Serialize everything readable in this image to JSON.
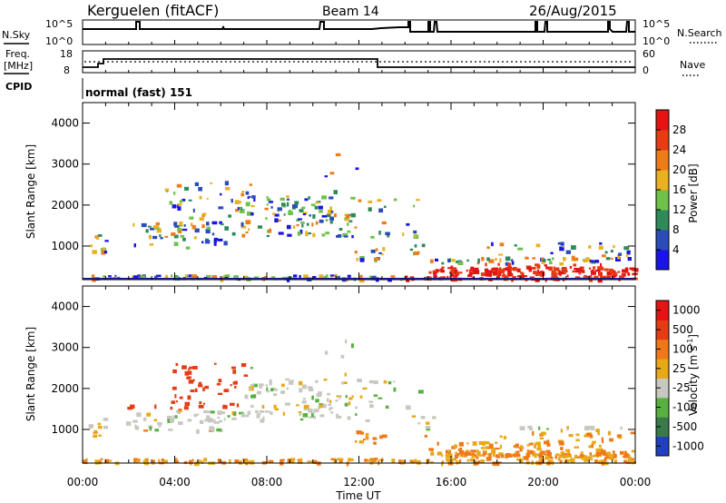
{
  "header": {
    "radar": "Kerguelen (fitACF)",
    "beam": "Beam 14",
    "date": "26/Aug/2015"
  },
  "status_panel": {
    "nsky_label": "N.Sky",
    "nsearch_label": "N.Search",
    "noise_ticks": [
      "10^5",
      "10^0"
    ],
    "freq_label": "Freq.",
    "freq_unit": "[MHz]",
    "freq_ticks": [
      "18",
      "8"
    ],
    "nave_label": "Nave",
    "nave_ticks": [
      "60",
      "0"
    ],
    "cpid_label": "CPID",
    "cpid_value": "normal (fast) 151"
  },
  "colors": {
    "power": [
      "#1a14e6",
      "#2a4cb8",
      "#2f8a5a",
      "#6ec24a",
      "#e9b020",
      "#f07c18",
      "#e63c14",
      "#e41414"
    ],
    "velocity": [
      "#2040c0",
      "#3a7a4a",
      "#58b040",
      "#c8c8c0",
      "#e8a818",
      "#f07818",
      "#e43c14",
      "#e41414"
    ]
  },
  "chart_data": [
    {
      "type": "heatmap",
      "title": "Power",
      "xlabel": "Time UT",
      "ylabel": "Slant Range [km]",
      "x_ticks": [
        "00:00",
        "04:00",
        "08:00",
        "12:00",
        "16:00",
        "20:00",
        "00:00"
      ],
      "xlim_hours": [
        0,
        24
      ],
      "ylim_km": [
        180,
        4500
      ],
      "y_ticks": [
        "1000",
        "2000",
        "3000",
        "4000"
      ],
      "colorbar_label": "Power [dB]",
      "colorbar_ticks": [
        "28",
        "24",
        "20",
        "16",
        "12",
        "8",
        "4"
      ],
      "colorbar_range_db": [
        0,
        32
      ]
    },
    {
      "type": "heatmap",
      "title": "Velocity",
      "xlabel": "Time UT",
      "ylabel": "Slant Range [km]",
      "x_ticks": [
        "00:00",
        "04:00",
        "08:00",
        "12:00",
        "16:00",
        "20:00",
        "00:00"
      ],
      "xlim_hours": [
        0,
        24
      ],
      "ylim_km": [
        180,
        4500
      ],
      "y_ticks": [
        "1000",
        "2000",
        "3000",
        "4000"
      ],
      "colorbar_label": "Velocity [m s-1]",
      "colorbar_ticks": [
        "1000",
        "500",
        "100",
        "25",
        "-25",
        "-100",
        "-500",
        "-1000"
      ]
    }
  ]
}
